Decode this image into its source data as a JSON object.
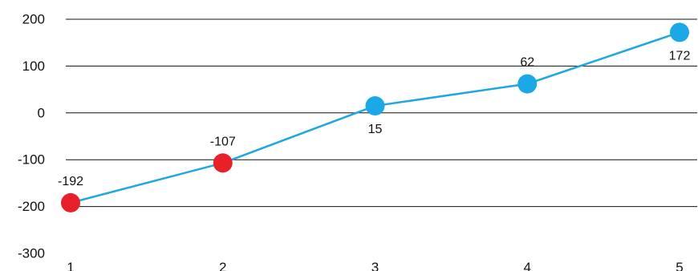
{
  "chart_data": {
    "type": "line",
    "x": [
      1,
      2,
      3,
      4,
      5
    ],
    "x_tick_labels": [
      "1",
      "2",
      "3",
      "4",
      "5"
    ],
    "y_ticks": [
      200,
      100,
      0,
      -100,
      -200,
      -300
    ],
    "y_tick_labels": [
      "200",
      "100",
      "0",
      "-100",
      "-200",
      "-300"
    ],
    "ylim": [
      -300,
      200
    ],
    "grid": "horizontal",
    "series": [
      {
        "values": [
          -192,
          -107,
          15,
          62,
          172
        ],
        "data_labels": [
          "-192",
          "-107",
          "15",
          "62",
          "172"
        ],
        "line_color": "#1fa7e1",
        "positive_color": "#1aa9e6",
        "negative_color": "#e8202a"
      }
    ]
  }
}
